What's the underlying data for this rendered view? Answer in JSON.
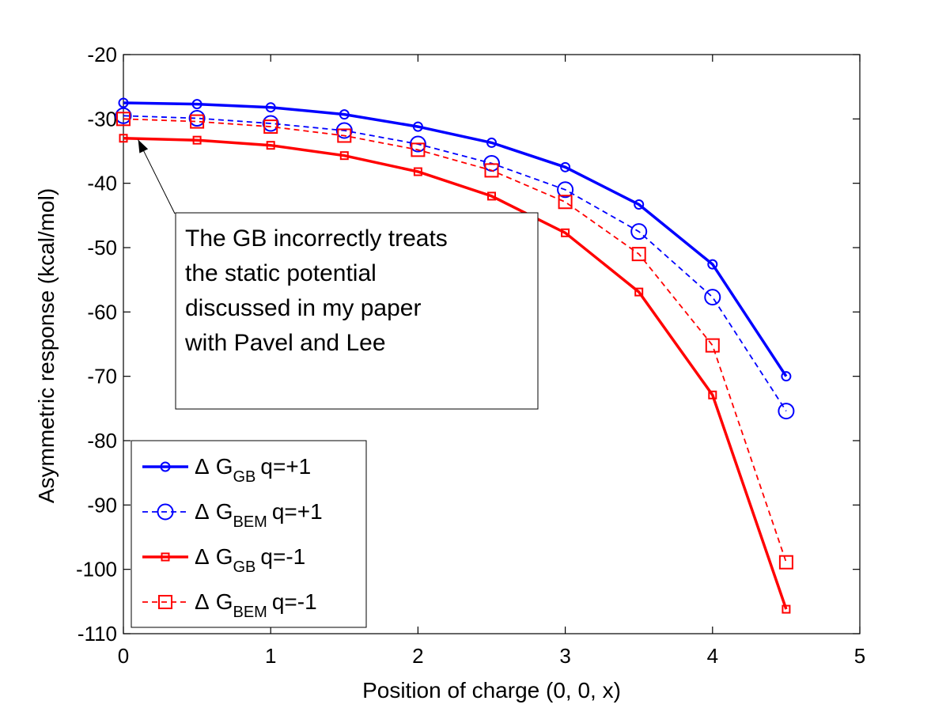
{
  "chart_data": {
    "type": "line",
    "xlabel": "Position of charge (0, 0, x)",
    "ylabel": "Asymmetric response (kcal/mol)",
    "xlim": [
      0,
      5
    ],
    "ylim": [
      -110,
      -20
    ],
    "xticks": [
      0,
      1,
      2,
      3,
      4,
      5
    ],
    "yticks": [
      -110,
      -100,
      -90,
      -80,
      -70,
      -60,
      -50,
      -40,
      -30,
      -20
    ],
    "grid": false,
    "legend_position": "lower-left",
    "x": [
      0,
      0.5,
      1,
      1.5,
      2,
      2.5,
      3,
      3.5,
      4,
      4.5
    ],
    "series": [
      {
        "legend_symbol": "Δ",
        "legend_main": "G",
        "legend_sub": "GB",
        "legend_tail": "q=+1",
        "color": "#0000ff",
        "line_style": "solid",
        "marker": "circle",
        "marker_size": "small",
        "values": [
          -27.5,
          -27.7,
          -28.2,
          -29.3,
          -31.2,
          -33.7,
          -37.5,
          -43.3,
          -52.6,
          -70.0
        ]
      },
      {
        "legend_symbol": "Δ",
        "legend_main": "G",
        "legend_sub": "BEM",
        "legend_tail": "q=+1",
        "color": "#0000ff",
        "line_style": "dashed",
        "marker": "circle",
        "marker_size": "large",
        "values": [
          -29.5,
          -29.9,
          -30.7,
          -31.8,
          -33.9,
          -36.9,
          -41.0,
          -47.5,
          -57.7,
          -75.4
        ]
      },
      {
        "legend_symbol": "Δ",
        "legend_main": "G",
        "legend_sub": "GB",
        "legend_tail": "q=-1",
        "color": "#ff0000",
        "line_style": "solid",
        "marker": "square",
        "marker_size": "small",
        "values": [
          -33.0,
          -33.3,
          -34.1,
          -35.7,
          -38.2,
          -42.0,
          -47.7,
          -56.9,
          -72.9,
          -106.2
        ]
      },
      {
        "legend_symbol": "Δ",
        "legend_main": "G",
        "legend_sub": "BEM",
        "legend_tail": "q=-1",
        "color": "#ff0000",
        "line_style": "dashed",
        "marker": "square",
        "marker_size": "large",
        "values": [
          -30.0,
          -30.4,
          -31.2,
          -32.6,
          -34.8,
          -38.0,
          -42.9,
          -51.0,
          -65.2,
          -98.9
        ]
      }
    ],
    "annotation": {
      "lines": [
        "The GB incorrectly treats",
        "the static potential",
        "discussed in my paper",
        "with Pavel and Lee"
      ],
      "arrow_target": {
        "x": 0.1,
        "y": -32.5
      }
    }
  }
}
